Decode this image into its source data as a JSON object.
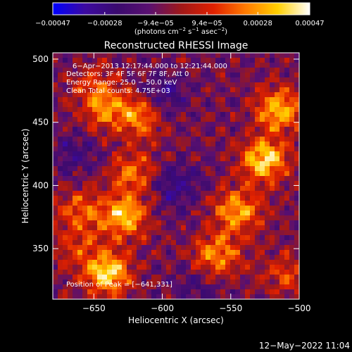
{
  "chart_data": {
    "type": "heatmap",
    "title": "Reconstructed RHESSI Image",
    "xlabel": "Heliocentric X (arcsec)",
    "ylabel": "Heliocentric Y (arcsec)",
    "xlim": [
      -680,
      -500
    ],
    "ylim": [
      310,
      505
    ],
    "x_ticks": [
      -650,
      -600,
      -550,
      -500
    ],
    "x_tick_labels": [
      "−650",
      "−600",
      "−550",
      "−500"
    ],
    "y_ticks": [
      350,
      400,
      450,
      500
    ],
    "y_tick_labels": [
      "350",
      "400",
      "450",
      "500"
    ],
    "colorbar": {
      "min": -0.00047,
      "max": 0.00047,
      "ticks": [
        -0.00047,
        -0.00028,
        -9.4e-05,
        9.4e-05,
        0.00028,
        0.00047
      ],
      "tick_labels": [
        "−0.00047",
        "−0.00028",
        "−9.4e−05",
        "9.4e−05",
        "0.00028",
        "0.00047"
      ],
      "unit_parts": [
        "(photons cm",
        "−2",
        " s",
        "−1",
        " asec",
        "−2",
        ")"
      ],
      "palette": [
        "#0000ff",
        "#3c0aa0",
        "#3a0a6e",
        "#5a1070",
        "#a01818",
        "#e02000",
        "#ff7a00",
        "#ffd000",
        "#ffffff"
      ]
    },
    "annotations": [
      "6−Apr−2013 12:17:44.000 to 12:21:44.000",
      "Detectors: 3F 4F 5F 6F 7F 8F, Att 0",
      "Energy Range: 25.0 − 50.0 keV",
      "Clean     Total counts: 4.75E+03"
    ],
    "peak_label": "Position of Peak = [−641,331]",
    "peak_position": [
      -641,
      331
    ],
    "intensity_features": [
      {
        "x": -525,
        "y": 420,
        "value": 0.00047
      },
      {
        "x": -515,
        "y": 460,
        "value": 0.00042
      },
      {
        "x": -545,
        "y": 380,
        "value": 0.0004
      },
      {
        "x": -560,
        "y": 345,
        "value": 0.00035
      },
      {
        "x": -640,
        "y": 330,
        "value": 0.00047
      },
      {
        "x": -628,
        "y": 375,
        "value": 0.00042
      },
      {
        "x": -622,
        "y": 410,
        "value": 0.0003
      },
      {
        "x": -615,
        "y": 455,
        "value": 0.00032
      },
      {
        "x": -640,
        "y": 460,
        "value": 0.00028
      },
      {
        "x": -650,
        "y": 478,
        "value": 0.0002
      },
      {
        "x": -660,
        "y": 380,
        "value": 0.00025
      },
      {
        "x": -662,
        "y": 350,
        "value": 0.00018
      },
      {
        "x": -590,
        "y": 400,
        "value": -0.0002
      },
      {
        "x": -665,
        "y": 425,
        "value": -0.00015
      },
      {
        "x": -600,
        "y": 470,
        "value": -0.0002
      },
      {
        "x": -575,
        "y": 320,
        "value": -0.00012
      },
      {
        "x": -510,
        "y": 330,
        "value": 0.0002
      }
    ]
  },
  "footer": {
    "timestamp": "12−May−2022 11:04"
  }
}
